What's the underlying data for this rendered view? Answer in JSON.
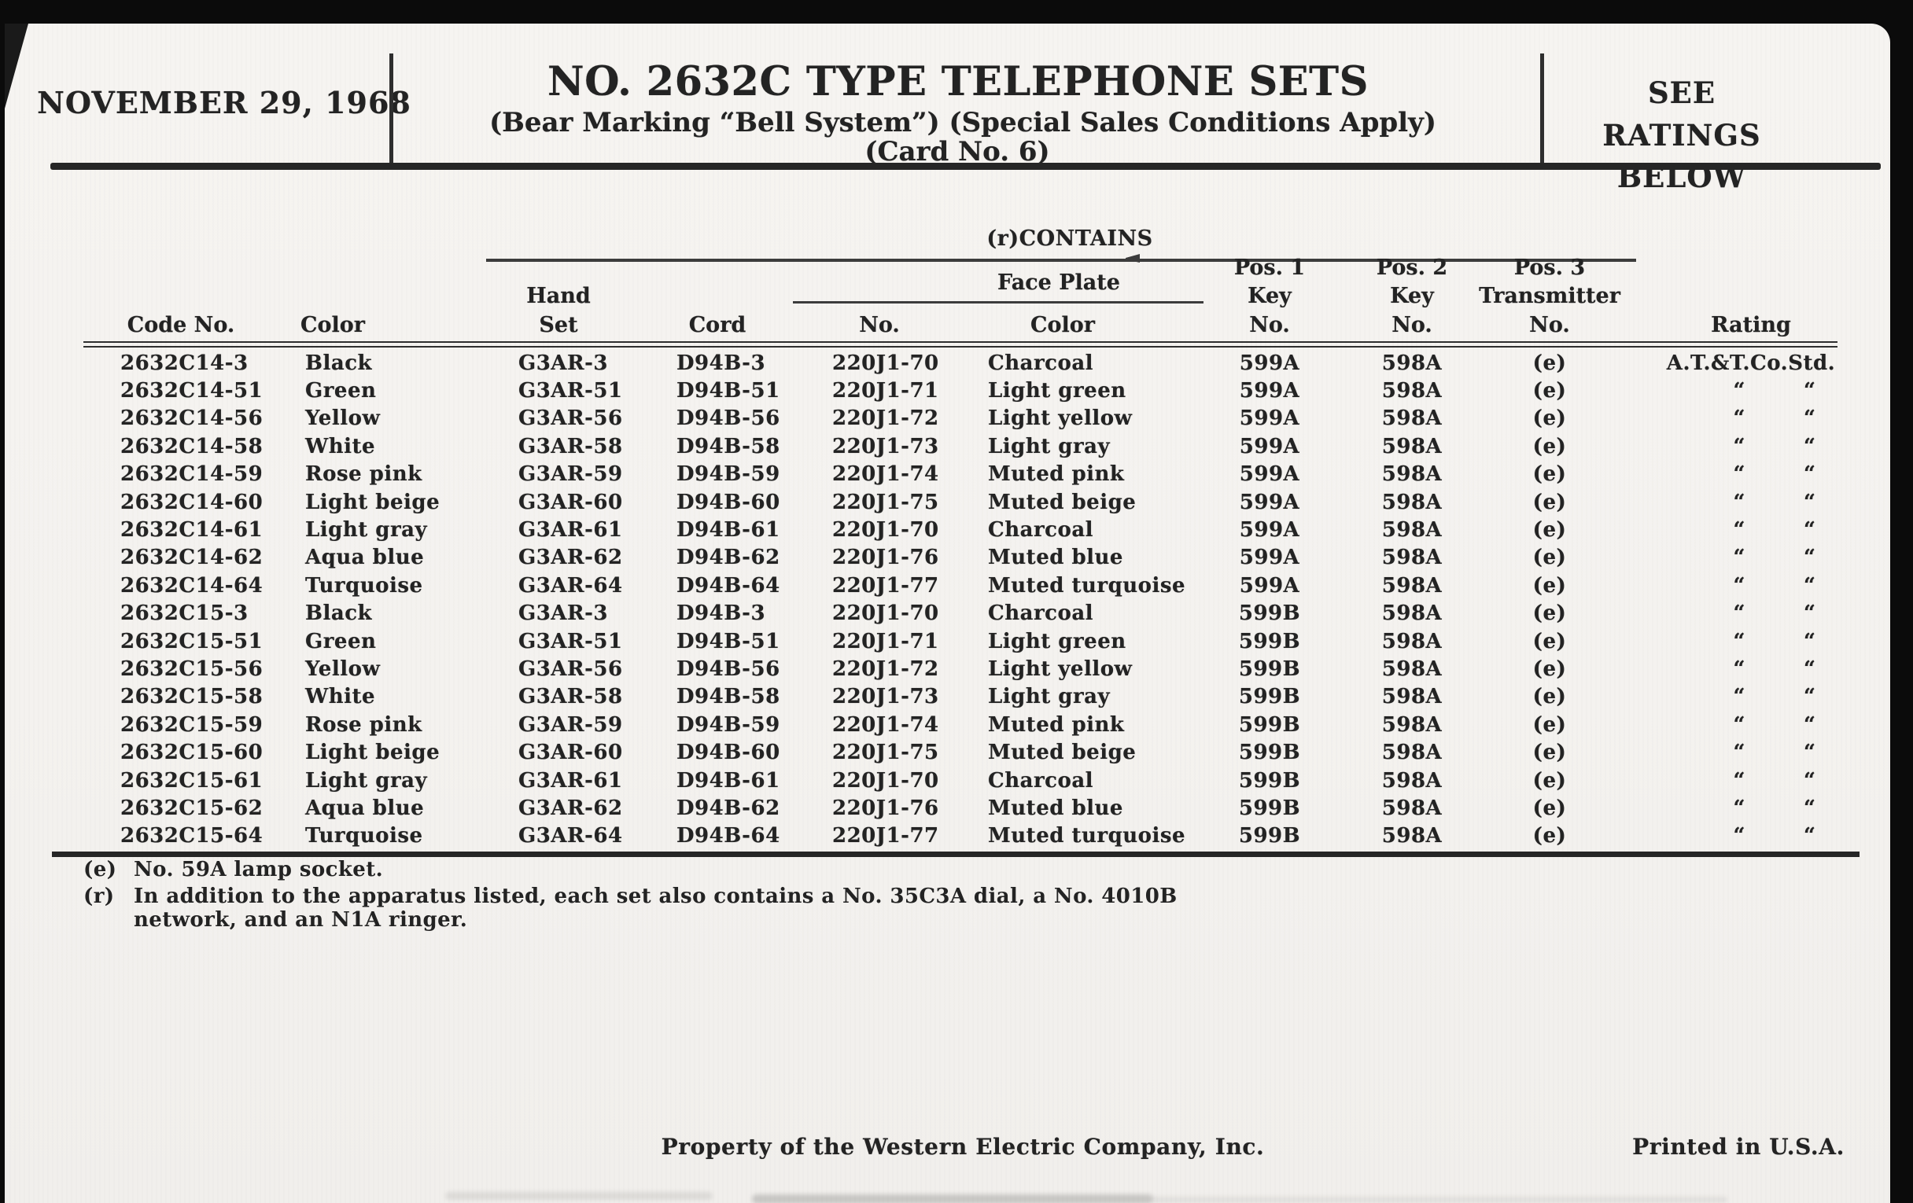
{
  "colors": {
    "background": "#0b0b0b",
    "paper": "#f4f2ef",
    "ink": "#232323"
  },
  "header": {
    "date": "NOVEMBER 29, 1968",
    "title": "NO. 2632C TYPE TELEPHONE SETS",
    "subtitle": "(Bear Marking “Bell System”) (Special Sales Conditions Apply)",
    "card_no": "(Card No. 6)",
    "ratings_note": "SEE RATINGS\nBELOW"
  },
  "table": {
    "contains_label": "(r)CONTAINS",
    "face_plate_label": "Face Plate",
    "column_headers": [
      "Code No.",
      "Color",
      "Hand\nSet",
      "Cord",
      "No.",
      "Color",
      "Pos. 1\nKey\nNo.",
      "Pos. 2\nKey\nNo.",
      "Pos. 3\nTransmitter\nNo.",
      "Rating"
    ],
    "ditto_mark": "“ “",
    "rows": [
      [
        "2632C14-3",
        "Black",
        "G3AR-3",
        "D94B-3",
        "220J1-70",
        "Charcoal",
        "599A",
        "598A",
        "(e)",
        "A.T.&T.Co.Std."
      ],
      [
        "2632C14-51",
        "Green",
        "G3AR-51",
        "D94B-51",
        "220J1-71",
        "Light green",
        "599A",
        "598A",
        "(e)",
        "“ “"
      ],
      [
        "2632C14-56",
        "Yellow",
        "G3AR-56",
        "D94B-56",
        "220J1-72",
        "Light yellow",
        "599A",
        "598A",
        "(e)",
        "“ “"
      ],
      [
        "2632C14-58",
        "White",
        "G3AR-58",
        "D94B-58",
        "220J1-73",
        "Light gray",
        "599A",
        "598A",
        "(e)",
        "“ “"
      ],
      [
        "2632C14-59",
        "Rose pink",
        "G3AR-59",
        "D94B-59",
        "220J1-74",
        "Muted pink",
        "599A",
        "598A",
        "(e)",
        "“ “"
      ],
      [
        "2632C14-60",
        "Light beige",
        "G3AR-60",
        "D94B-60",
        "220J1-75",
        "Muted beige",
        "599A",
        "598A",
        "(e)",
        "“ “"
      ],
      [
        "2632C14-61",
        "Light gray",
        "G3AR-61",
        "D94B-61",
        "220J1-70",
        "Charcoal",
        "599A",
        "598A",
        "(e)",
        "“ “"
      ],
      [
        "2632C14-62",
        "Aqua blue",
        "G3AR-62",
        "D94B-62",
        "220J1-76",
        "Muted blue",
        "599A",
        "598A",
        "(e)",
        "“ “"
      ],
      [
        "2632C14-64",
        "Turquoise",
        "G3AR-64",
        "D94B-64",
        "220J1-77",
        "Muted turquoise",
        "599A",
        "598A",
        "(e)",
        "“ “"
      ],
      [
        "2632C15-3",
        "Black",
        "G3AR-3",
        "D94B-3",
        "220J1-70",
        "Charcoal",
        "599B",
        "598A",
        "(e)",
        "“ “"
      ],
      [
        "2632C15-51",
        "Green",
        "G3AR-51",
        "D94B-51",
        "220J1-71",
        "Light green",
        "599B",
        "598A",
        "(e)",
        "“ “"
      ],
      [
        "2632C15-56",
        "Yellow",
        "G3AR-56",
        "D94B-56",
        "220J1-72",
        "Light yellow",
        "599B",
        "598A",
        "(e)",
        "“ “"
      ],
      [
        "2632C15-58",
        "White",
        "G3AR-58",
        "D94B-58",
        "220J1-73",
        "Light gray",
        "599B",
        "598A",
        "(e)",
        "“ “"
      ],
      [
        "2632C15-59",
        "Rose pink",
        "G3AR-59",
        "D94B-59",
        "220J1-74",
        "Muted pink",
        "599B",
        "598A",
        "(e)",
        "“ “"
      ],
      [
        "2632C15-60",
        "Light beige",
        "G3AR-60",
        "D94B-60",
        "220J1-75",
        "Muted beige",
        "599B",
        "598A",
        "(e)",
        "“ “"
      ],
      [
        "2632C15-61",
        "Light gray",
        "G3AR-61",
        "D94B-61",
        "220J1-70",
        "Charcoal",
        "599B",
        "598A",
        "(e)",
        "“ “"
      ],
      [
        "2632C15-62",
        "Aqua blue",
        "G3AR-62",
        "D94B-62",
        "220J1-76",
        "Muted blue",
        "599B",
        "598A",
        "(e)",
        "“ “"
      ],
      [
        "2632C15-64",
        "Turquoise",
        "G3AR-64",
        "D94B-64",
        "220J1-77",
        "Muted turquoise",
        "599B",
        "598A",
        "(e)",
        "“ “"
      ]
    ]
  },
  "footnotes": [
    {
      "marker": "(e)",
      "text": "No. 59A lamp socket."
    },
    {
      "marker": "(r)",
      "text": "In addition to the apparatus listed, each set also contains a No. 35C3A dial, a No. 4010B network, and an N1A ringer."
    }
  ],
  "footer": {
    "property": "Property of the Western Electric Company, Inc.",
    "printed": "Printed in U.S.A."
  }
}
